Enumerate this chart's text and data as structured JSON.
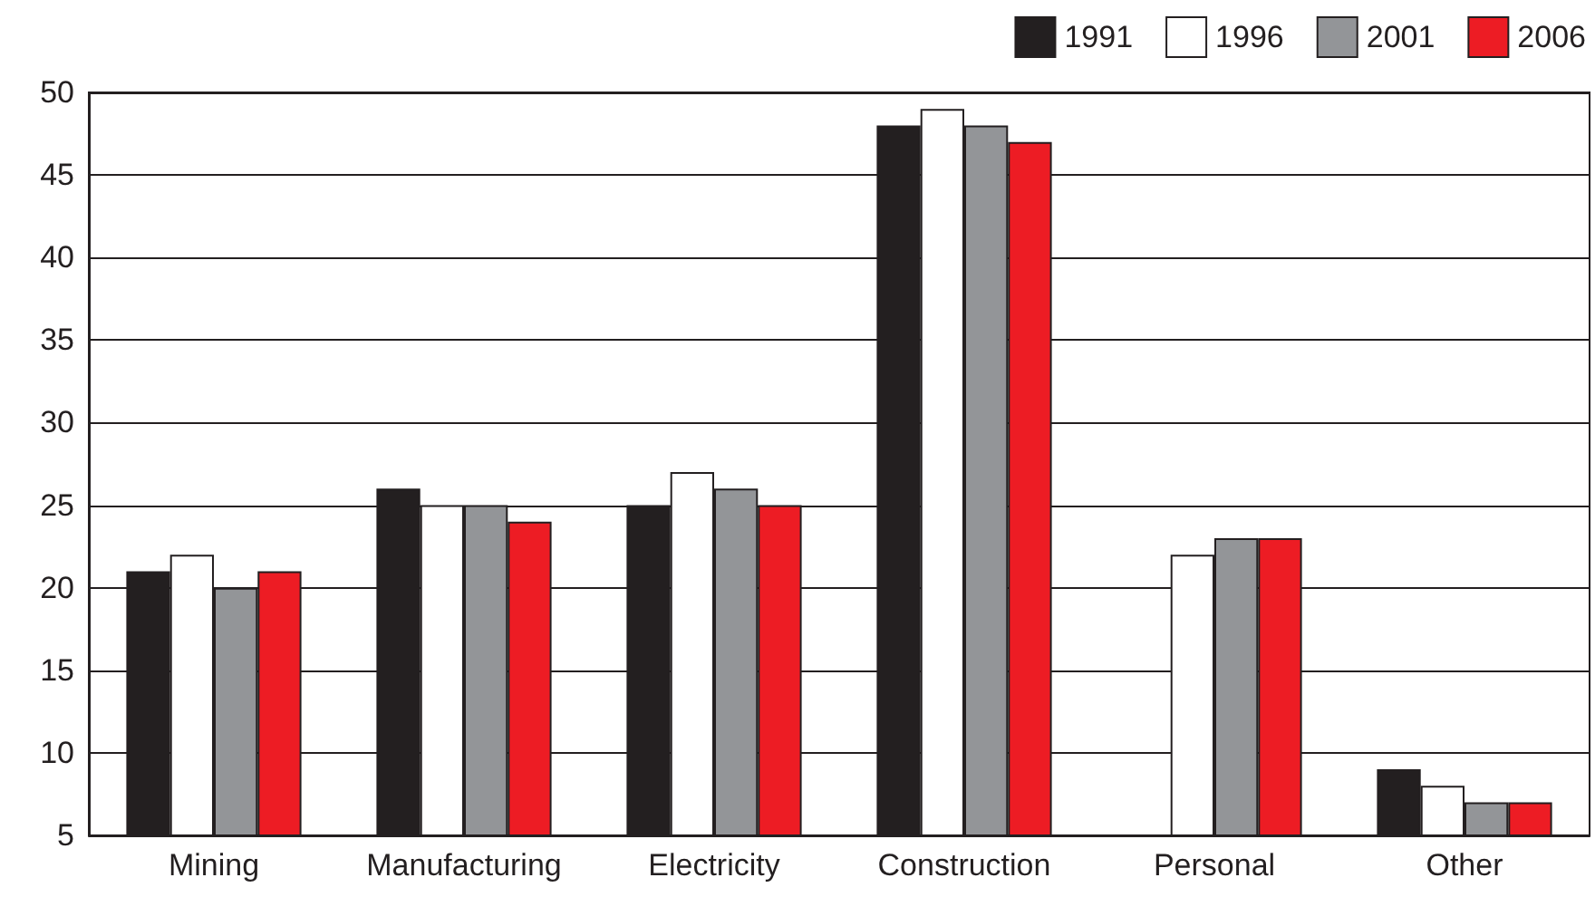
{
  "chart_data": {
    "type": "bar",
    "categories": [
      "Mining",
      "Manufacturing",
      "Electricity",
      "Construction",
      "Personal",
      "Other"
    ],
    "series": [
      {
        "name": "1991",
        "color": "#231f20",
        "values": [
          21,
          26,
          25,
          48,
          null,
          9
        ]
      },
      {
        "name": "1996",
        "color": "#ffffff",
        "values": [
          22,
          25,
          27,
          49,
          22,
          8
        ]
      },
      {
        "name": "2001",
        "color": "#939598",
        "values": [
          20,
          25,
          26,
          48,
          23,
          7
        ]
      },
      {
        "name": "2006",
        "color": "#ed1c24",
        "values": [
          21,
          24,
          25,
          47,
          23,
          7
        ]
      }
    ],
    "ylim": [
      5,
      50
    ],
    "yticks": [
      5,
      10,
      15,
      20,
      25,
      30,
      35,
      40,
      45,
      50
    ],
    "grid": "y",
    "legend": "top right"
  }
}
